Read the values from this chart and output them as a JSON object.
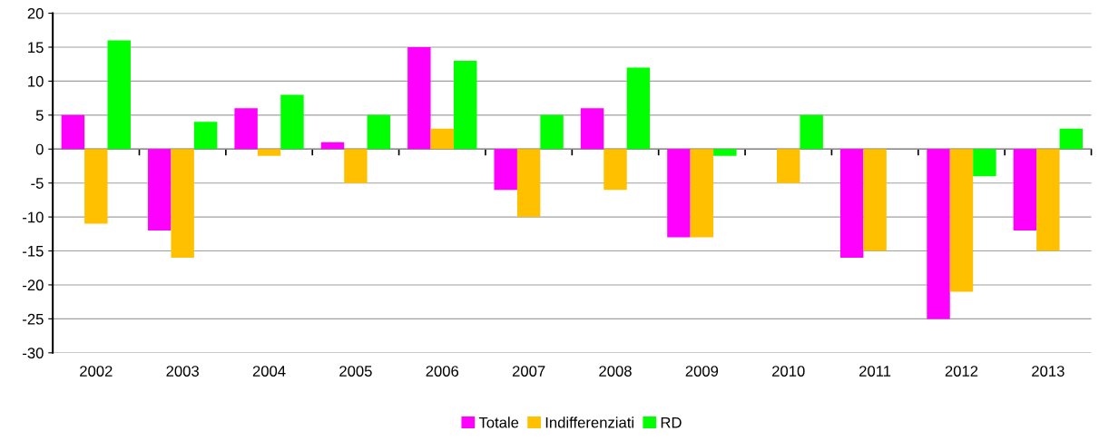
{
  "chart_data": {
    "type": "bar",
    "categories": [
      "2002",
      "2003",
      "2004",
      "2005",
      "2006",
      "2007",
      "2008",
      "2009",
      "2010",
      "2011",
      "2012",
      "2013"
    ],
    "series": [
      {
        "name": "Totale",
        "color": "#ff00ff",
        "values": [
          5,
          -12,
          6,
          1,
          15,
          -6,
          6,
          -13,
          0,
          -16,
          -25,
          -12
        ]
      },
      {
        "name": "Indifferenziati",
        "color": "#ffc000",
        "values": [
          -11,
          -16,
          -1,
          -5,
          3,
          -10,
          -6,
          -13,
          -5,
          -15,
          -21,
          -15
        ]
      },
      {
        "name": "RD",
        "color": "#00ff00",
        "values": [
          16,
          4,
          8,
          5,
          13,
          5,
          12,
          -1,
          5,
          0,
          -4,
          3
        ]
      }
    ],
    "ylim": [
      -30,
      20
    ],
    "yticks": [
      -30,
      -25,
      -20,
      -15,
      -10,
      -5,
      0,
      5,
      10,
      15,
      20
    ],
    "grid": "y",
    "legend": "bottom"
  }
}
